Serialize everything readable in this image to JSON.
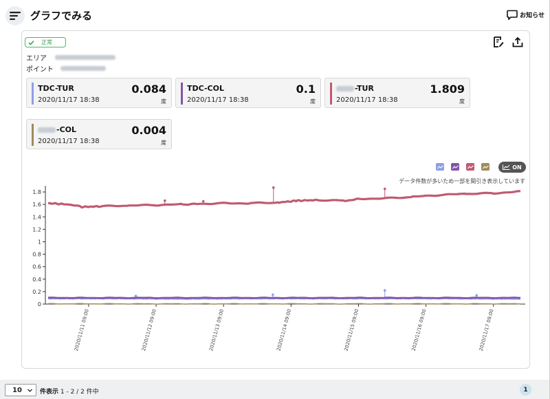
{
  "header": {
    "title": "グラフでみる",
    "notice_label": "お知らせ",
    "menu_icon": "menu-icon",
    "notice_icon": "chat-bubble-icon"
  },
  "status": {
    "label": "正常",
    "color": "#52b36b"
  },
  "info": {
    "area_label": "エリア",
    "point_label": "ポイント"
  },
  "sensors": [
    {
      "name": "TDC-TUR",
      "time": "2020/11/17 18:38",
      "value": "0.084",
      "unit": "度",
      "color": "#8f9ee6"
    },
    {
      "name": "TDC-COL",
      "time": "2020/11/17 18:38",
      "value": "0.1",
      "unit": "度",
      "color": "#8454a6"
    },
    {
      "name_suffix": "-TUR",
      "time": "2020/11/17 18:38",
      "value": "1.809",
      "unit": "度",
      "color": "#c05a72"
    },
    {
      "name_suffix": "-COL",
      "time": "2020/11/17 18:38",
      "value": "0.004",
      "unit": "度",
      "color": "#9e8a5c"
    }
  ],
  "legend": {
    "colors": [
      "#8f9ee6",
      "#8454a6",
      "#c05a72",
      "#9e8a5c"
    ],
    "toggle_label": "ON",
    "note": "データ件数が多いため一部を間引き表示しています"
  },
  "chart_data": {
    "type": "line",
    "y_ticks": [
      "0",
      "0.2",
      "0.4",
      "0.6",
      "0.8",
      "1",
      "1.2",
      "1.4",
      "1.6",
      "1.8"
    ],
    "x_ticks": [
      "2020/11/11 09:00",
      "2020/11/12 09:00",
      "2020/11/13 09:00",
      "2020/11/14 09:00",
      "2020/11/15 09:00",
      "2020/11/16 09:00",
      "2020/11/17 09:00"
    ],
    "ylim": [
      0,
      1.9
    ],
    "x_range": [
      "2020/11/10 18:38",
      "2020/11/17 18:38"
    ],
    "series": [
      {
        "color": "#c05a72",
        "points": [
          [
            0,
            1.62
          ],
          [
            0.3,
            1.6
          ],
          [
            0.5,
            1.56
          ],
          [
            0.8,
            1.57
          ],
          [
            1.2,
            1.58
          ],
          [
            1.6,
            1.59
          ],
          [
            2.0,
            1.6
          ],
          [
            2.2,
            1.61
          ],
          [
            2.6,
            1.62
          ],
          [
            3.0,
            1.62
          ],
          [
            3.4,
            1.63
          ],
          [
            3.7,
            1.66
          ],
          [
            4.0,
            1.67
          ],
          [
            4.4,
            1.66
          ],
          [
            4.6,
            1.69
          ],
          [
            5.0,
            1.7
          ],
          [
            5.4,
            1.72
          ],
          [
            5.8,
            1.75
          ],
          [
            6.2,
            1.77
          ],
          [
            6.6,
            1.78
          ],
          [
            7.0,
            1.81
          ]
        ],
        "spikes": [
          [
            1.73,
            1.66
          ],
          [
            2.3,
            1.65
          ],
          [
            3.34,
            1.87
          ],
          [
            4.99,
            1.85
          ]
        ]
      },
      {
        "color": "#8f9ee6",
        "points": [
          [
            0,
            0.09
          ],
          [
            1.0,
            0.09
          ],
          [
            2.0,
            0.085
          ],
          [
            3.0,
            0.09
          ],
          [
            4.0,
            0.09
          ],
          [
            5.0,
            0.09
          ],
          [
            6.0,
            0.09
          ],
          [
            7.0,
            0.084
          ]
        ],
        "spikes": [
          [
            1.3,
            0.13
          ],
          [
            3.33,
            0.15
          ],
          [
            4.99,
            0.22
          ],
          [
            6.35,
            0.14
          ]
        ]
      },
      {
        "color": "#8454a6",
        "points": [
          [
            0,
            0.1
          ],
          [
            7.0,
            0.1
          ]
        ],
        "spikes": []
      },
      {
        "color": "#9e8a5c",
        "points": [
          [
            0,
            0.004
          ],
          [
            7.0,
            0.004
          ]
        ],
        "spikes": []
      }
    ]
  },
  "footer": {
    "per_page_value": "10",
    "per_page_label": "件表示",
    "range_text": "1 - 2 / 2 件中",
    "current_page": "1"
  }
}
